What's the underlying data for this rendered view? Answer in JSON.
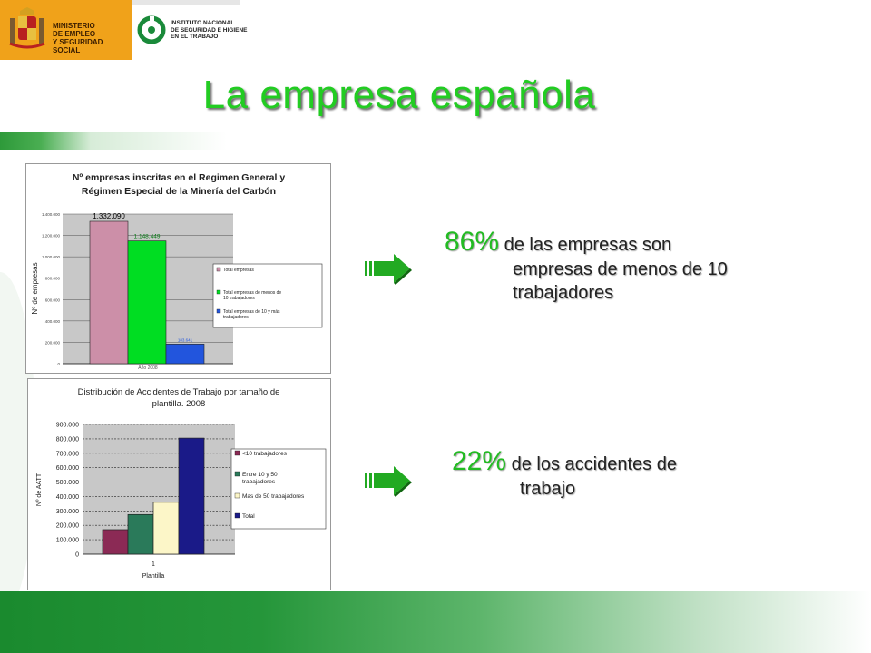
{
  "header": {
    "ministerio_text": "MINISTERIO\nDE EMPLEO\nY SEGURIDAD SOCIAL",
    "insht_text": "INSTITUTO NACIONAL\nDE SEGURIDAD E HIGIENE\nEN EL TRABAJO",
    "crest_icon": "coat-of-arms-icon",
    "insht_icon": "insht-ring-icon"
  },
  "slide": {
    "title": "La empresa española"
  },
  "callouts": [
    {
      "percent": "86%",
      "text1": " de las empresas son",
      "text2": "empresas de menos de 10",
      "text3": "trabajadores",
      "icon": "arrow-right-icon"
    },
    {
      "percent": "22%",
      "text1": " de los accidentes de",
      "text2": "trabajo",
      "icon": "arrow-right-icon"
    }
  ],
  "chart_data": [
    {
      "type": "bar",
      "title": "Nº empresas inscritas en el Regimen General y",
      "subtitle": "Régimen Especial de la Minería del Carbón",
      "ylabel": "Nº de empresas",
      "xlabel": "",
      "categories": [
        "Año 2008"
      ],
      "series": [
        {
          "name": "Total empresas",
          "values": [
            1332090
          ],
          "label": "1.332.090",
          "color": "#cc8fa8"
        },
        {
          "name": "Total empresas de menos de 10 trabajadores",
          "values": [
            1148449
          ],
          "label": "1.148.449",
          "color": "#00dd22"
        },
        {
          "name": "Total empresas de 10 y más trabajadores",
          "values": [
            183641
          ],
          "label": "183.641",
          "color": "#2255dd"
        }
      ],
      "ylim": [
        0,
        1400000
      ],
      "yticks": [
        "0",
        "200.000",
        "400.000",
        "600.000",
        "800.000",
        "1.000.000",
        "1.200.000",
        "1.400.000"
      ],
      "grid": true,
      "legend": "right"
    },
    {
      "type": "bar",
      "title": "Distribución de Accidentes de Trabajo por tamaño de",
      "subtitle": "plantilla. 2008",
      "ylabel": "Nº de AATT",
      "xlabel": "Plantilla",
      "categories": [
        "1"
      ],
      "series": [
        {
          "name": "<10 trabajadores",
          "values": [
            170000
          ],
          "color": "#8b2a55"
        },
        {
          "name": "Entre 10 y 50 trabajadores",
          "values": [
            275000
          ],
          "color": "#2a7a5a"
        },
        {
          "name": "Mas de 50 trabajadores",
          "values": [
            360000
          ],
          "color": "#fcf6c8"
        },
        {
          "name": "Total",
          "values": [
            805000
          ],
          "color": "#1a1a88"
        }
      ],
      "ylim": [
        0,
        900000
      ],
      "yticks": [
        "0",
        "100.000",
        "200.000",
        "300.000",
        "400.000",
        "500.000",
        "600.000",
        "700.000",
        "800.000",
        "900.000"
      ],
      "grid": true,
      "legend": "right"
    }
  ]
}
